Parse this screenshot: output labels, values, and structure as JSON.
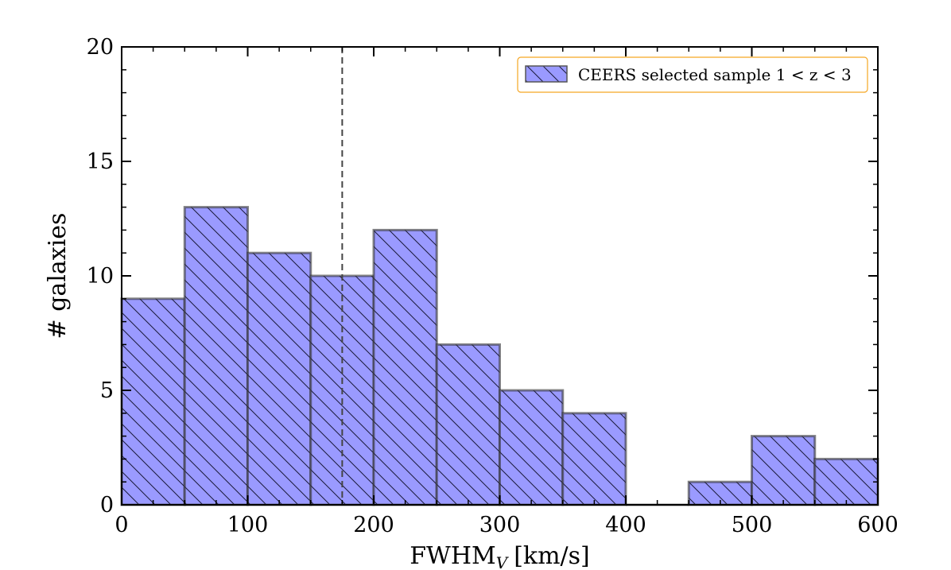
{
  "chart_data": {
    "type": "histogram",
    "title": "",
    "xlabel": "FWHM",
    "xlabel_subscript": "V",
    "xlabel_units": "[km/s]",
    "ylabel": "# galaxies",
    "xlim": [
      0,
      600
    ],
    "ylim": [
      0,
      20
    ],
    "xticks": [
      0,
      100,
      200,
      300,
      400,
      500,
      600
    ],
    "yticks": [
      0,
      5,
      10,
      15,
      20
    ],
    "x_minor_step": 25,
    "y_minor_step": 1,
    "bin_width": 50,
    "bin_edges": [
      0,
      50,
      100,
      150,
      200,
      250,
      300,
      350,
      400,
      450,
      500,
      550,
      600
    ],
    "counts": [
      9,
      13,
      11,
      10,
      12,
      7,
      5,
      4,
      0,
      1,
      3,
      2
    ],
    "reference_line": {
      "x": 175,
      "style": "dashed"
    },
    "legend": {
      "label": "CEERS selected sample 1 < z < 3",
      "placement": "top-right",
      "edge_color": "#f5a623"
    },
    "colors": {
      "bar_fill": "#9a9aff",
      "bar_edge": "#333333",
      "hatch": "#1a1a3a"
    }
  }
}
